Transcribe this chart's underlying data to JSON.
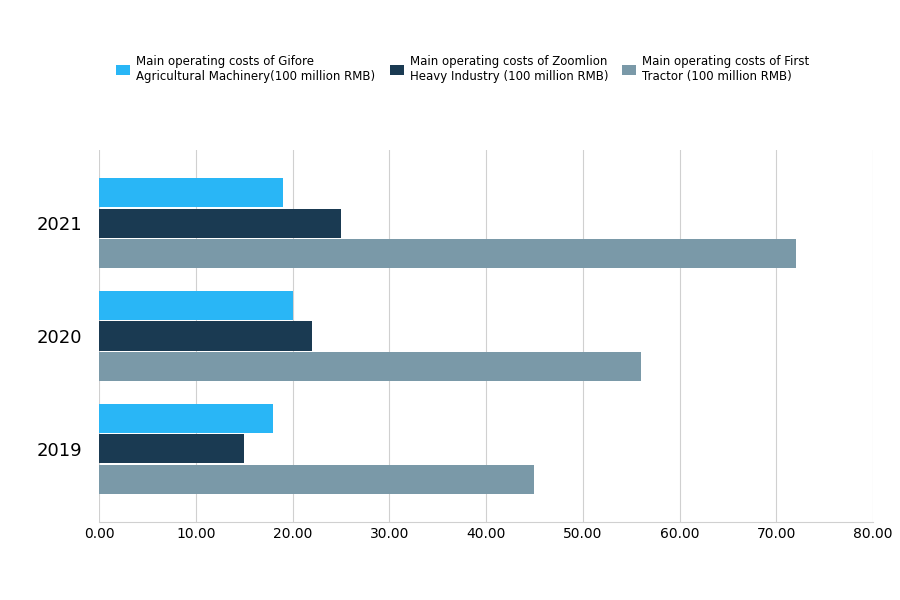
{
  "years": [
    "2021",
    "2020",
    "2019"
  ],
  "gifore": [
    19.0,
    20.0,
    18.0
  ],
  "zoomlion": [
    25.0,
    22.0,
    15.0
  ],
  "first_tractor": [
    72.0,
    56.0,
    45.0
  ],
  "gifore_color": "#29B6F6",
  "zoomlion_color": "#1A3A52",
  "first_tractor_color": "#7A99A8",
  "legend_gifore": "Main operating costs of Gifore\nAgricultural Machinery(100 million RMB)",
  "legend_zoomlion": "Main operating costs of Zoomlion\nHeavy Industry (100 million RMB)",
  "legend_first_tractor": "Main operating costs of First\nTractor (100 million RMB)",
  "xlim": [
    0,
    80
  ],
  "xticks": [
    0,
    10,
    20,
    30,
    40,
    50,
    60,
    70,
    80
  ],
  "xtick_labels": [
    "0.00",
    "10.00",
    "20.00",
    "30.00",
    "40.00",
    "50.00",
    "60.00",
    "70.00",
    "80.00"
  ],
  "bar_height": 0.26,
  "background_color": "#ffffff",
  "grid_color": "#d0d0d0"
}
